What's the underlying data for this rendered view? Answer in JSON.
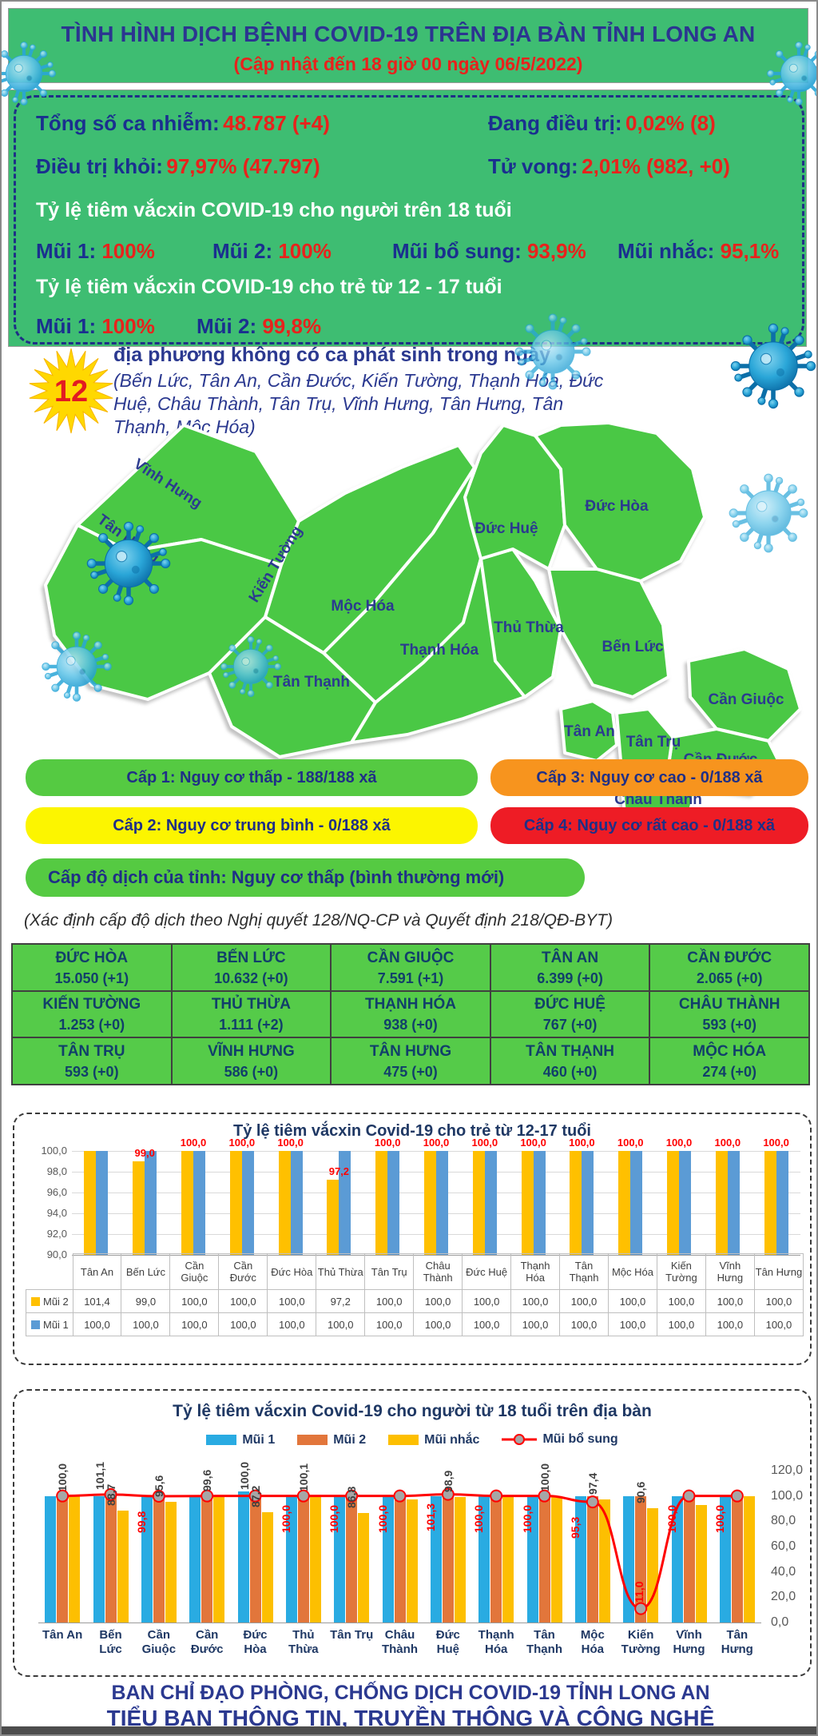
{
  "header": {
    "title": "TÌNH HÌNH DỊCH BỆNH COVID-19 TRÊN ĐỊA BÀN TỈNH LONG AN",
    "subtitle": "(Cập nhật đến 18 giờ 00 ngày 06/5/2022)"
  },
  "summary": {
    "total_label": "Tổng số ca nhiễm:",
    "total_value": "48.787 (+4)",
    "treating_label": "Đang điều trị:",
    "treating_value": "0,02% (8)",
    "recovered_label": "Điều trị khỏi:",
    "recovered_value": "97,97% (47.797)",
    "deaths_label": "Tử vong:",
    "deaths_value": "2,01% (982, +0)",
    "adult_title": "Tỷ lệ tiêm vắcxin COVID-19 cho người trên 18 tuổi",
    "adult_doses": [
      {
        "label": "Mũi 1:",
        "value": "100%"
      },
      {
        "label": "Mũi 2:",
        "value": "100%"
      },
      {
        "label": "Mũi bổ sung:",
        "value": "93,9%"
      },
      {
        "label": "Mũi nhắc:",
        "value": "95,1%"
      }
    ],
    "child_title": "Tỷ lệ tiêm vắcxin COVID-19 cho trẻ từ 12 - 17 tuổi",
    "child_doses": [
      {
        "label": "Mũi 1:",
        "value": "100%"
      },
      {
        "label": "Mũi 2:",
        "value": "99,8%"
      }
    ]
  },
  "no_new_cases": {
    "count": "12",
    "heading": "địa phương không có ca phát sinh trong ngày",
    "list": "(Bến Lức, Tân An, Cần Đước, Kiến Tường, Thạnh Hóa, Đức Huệ, Châu Thành, Tân Trụ, Vĩnh Hưng, Tân Hưng, Tân Thạnh, Mộc Hóa)"
  },
  "map": {
    "district_labels": [
      "Vĩnh Hưng",
      "Tân Hưng",
      "Kiến Tường",
      "Mộc Hóa",
      "Tân Thạnh",
      "Thạnh Hóa",
      "Thủ Thừa",
      "Đức Huệ",
      "Đức Hòa",
      "Bến Lức",
      "Tân An",
      "Tân Trụ",
      "Cần Giuộc",
      "Cần Đước",
      "Châu Thành"
    ],
    "fill_color": "#4ac845"
  },
  "risk_legend": [
    {
      "label": "Cấp 1: Nguy cơ thấp - 188/188 xã",
      "color": "#55ca42"
    },
    {
      "label": "Cấp 2: Nguy cơ trung bình - 0/188 xã",
      "color": "#fcf500"
    },
    {
      "label": "Cấp 3: Nguy cơ cao - 0/188 xã",
      "color": "#f7941e"
    },
    {
      "label": "Cấp 4: Nguy cơ rất cao - 0/188 xã",
      "color": "#ee1c25"
    }
  ],
  "province_level": {
    "label": "Cấp độ dịch của tỉnh: Nguy cơ thấp (bình thường mới)",
    "note": "(Xác định cấp độ dịch theo Nghị quyết 128/NQ-CP và Quyết định 218/QĐ-BYT)"
  },
  "district_table": {
    "cells": [
      {
        "name": "ĐỨC HÒA",
        "value": "15.050 (+1)"
      },
      {
        "name": "BẾN LỨC",
        "value": "10.632 (+0)"
      },
      {
        "name": "CẦN GIUỘC",
        "value": "7.591 (+1)"
      },
      {
        "name": "TÂN AN",
        "value": "6.399 (+0)"
      },
      {
        "name": "CẦN ĐƯỚC",
        "value": "2.065 (+0)"
      },
      {
        "name": "KIẾN TƯỜNG",
        "value": "1.253 (+0)"
      },
      {
        "name": "THỦ THỪA",
        "value": "1.111 (+2)"
      },
      {
        "name": "THẠNH HÓA",
        "value": "938 (+0)"
      },
      {
        "name": "ĐỨC HUỆ",
        "value": "767 (+0)"
      },
      {
        "name": "CHÂU THÀNH",
        "value": "593 (+0)"
      },
      {
        "name": "TÂN TRỤ",
        "value": "593 (+0)"
      },
      {
        "name": "VĨNH HƯNG",
        "value": "586 (+0)"
      },
      {
        "name": "TÂN HƯNG",
        "value": "475 (+0)"
      },
      {
        "name": "TÂN THẠNH",
        "value": "460 (+0)"
      },
      {
        "name": "MỘC HÓA",
        "value": "274 (+0)"
      }
    ]
  },
  "chart_data": [
    {
      "type": "bar",
      "title": "Tỷ lệ tiêm vắcxin Covid-19 cho trẻ từ 12-17 tuổi",
      "categories": [
        "Tân An",
        "Bến Lức",
        "Cần Giuộc",
        "Cần Đước",
        "Đức Hòa",
        "Thủ Thừa",
        "Tân Trụ",
        "Châu Thành",
        "Đức Huệ",
        "Thạnh Hóa",
        "Tân Thạnh",
        "Mộc Hóa",
        "Kiến Tường",
        "Vĩnh Hưng",
        "Tân Hưng"
      ],
      "series": [
        {
          "name": "Mũi 2",
          "color": "#ffc000",
          "values": [
            101.4,
            99.0,
            100.0,
            100.0,
            100.0,
            97.2,
            100.0,
            100.0,
            100.0,
            100.0,
            100.0,
            100.0,
            100.0,
            100.0,
            100.0
          ],
          "display": [
            "101,4",
            "99,0",
            "100,0",
            "100,0",
            "100,0",
            "97,2",
            "100,0",
            "100,0",
            "100,0",
            "100,0",
            "100,0",
            "100,0",
            "100,0",
            "100,0",
            "100,0"
          ]
        },
        {
          "name": "Mũi 1",
          "color": "#5b9bd5",
          "values": [
            100.0,
            100.0,
            100.0,
            100.0,
            100.0,
            100.0,
            100.0,
            100.0,
            100.0,
            100.0,
            100.0,
            100.0,
            100.0,
            100.0,
            100.0
          ],
          "display": [
            "100,0",
            "100,0",
            "100,0",
            "100,0",
            "100,0",
            "100,0",
            "100,0",
            "100,0",
            "100,0",
            "100,0",
            "100,0",
            "100,0",
            "100,0",
            "100,0",
            "100,0"
          ]
        }
      ],
      "bar_labels": [
        "",
        "99,0",
        "100,0",
        "100,0",
        "100,0",
        "97,2",
        "100,0",
        "100,0",
        "100,0",
        "100,0",
        "100,0",
        "100,0",
        "100,0",
        "100,0",
        "100,0"
      ],
      "ylim": [
        90,
        100
      ],
      "ytick_labels": [
        "100,0",
        "98,0",
        "96,0",
        "94,0",
        "92,0",
        "90,0"
      ],
      "grid": true,
      "legend_position": "left-table"
    },
    {
      "type": "bar",
      "title": "Tỷ lệ tiêm vắcxin Covid-19 cho người từ 18 tuổi trên địa bàn",
      "categories": [
        "Tân An",
        "Bến Lức",
        "Cần Giuộc",
        "Cần Đước",
        "Đức Hòa",
        "Thủ Thừa",
        "Tân Trụ",
        "Châu Thành",
        "Đức Huệ",
        "Thạnh Hóa",
        "Tân Thạnh",
        "Mộc Hóa",
        "Kiến Tường",
        "Vĩnh Hưng",
        "Tân Hưng"
      ],
      "series": [
        {
          "name": "Mũi 1",
          "color": "#29abe2",
          "values": [
            100,
            100,
            100,
            100,
            103.5,
            100,
            100,
            99,
            100,
            100,
            100,
            100,
            100,
            100,
            100
          ]
        },
        {
          "name": "Mũi 2",
          "color": "#e2763b",
          "values": [
            100,
            101.1,
            99.5,
            100,
            100,
            100,
            100,
            98,
            100,
            100,
            100,
            100,
            100,
            100,
            100
          ]
        },
        {
          "name": "Mũi nhắc",
          "color": "#fdbf01",
          "values": [
            100,
            88.7,
            95.6,
            99.6,
            87.2,
            100.1,
            86.8,
            97,
            98.9,
            100,
            100,
            97.4,
            90.6,
            93,
            100
          ]
        }
      ],
      "line_series": {
        "name": "Mũi bổ sung",
        "color": "#ff0000",
        "values": [
          100,
          101.1,
          99.8,
          100,
          100,
          100,
          100,
          100,
          101.3,
          100,
          100,
          95.3,
          11,
          100,
          100
        ]
      },
      "black_labels": [
        [
          "100,0"
        ],
        [
          "88,7",
          "101,1"
        ],
        [
          "95,6"
        ],
        [
          "99,6"
        ],
        [
          "87,2",
          "100,0"
        ],
        [
          "100,1"
        ],
        [
          "86,8"
        ],
        [],
        [
          "98,9"
        ],
        [],
        [
          "100,0"
        ],
        [
          "97,4"
        ],
        [
          "90,6"
        ],
        [],
        []
      ],
      "red_labels": [
        "",
        "",
        "99,8",
        "",
        "",
        "100,0",
        "100,0",
        "100,0",
        "101,3",
        "100,0",
        "100,0",
        "95,3",
        "11,0",
        "100,0",
        "100,0"
      ],
      "ylim": [
        0,
        120
      ],
      "ytick_labels": [
        "120,0",
        "100,0",
        "80,0",
        "60,0",
        "40,0",
        "20,0",
        "0,0"
      ],
      "grid": false,
      "legend": [
        "Mũi 1",
        "Mũi 2",
        "Mũi nhắc",
        "Mũi bổ sung"
      ],
      "legend_position": "top"
    }
  ],
  "footer": {
    "line1": "BAN CHỈ ĐẠO PHÒNG, CHỐNG DỊCH COVID-19 TỈNH LONG AN",
    "line2": "TIỂU BAN THÔNG TIN, TRUYỀN THÔNG VÀ CÔNG NGHỆ"
  }
}
